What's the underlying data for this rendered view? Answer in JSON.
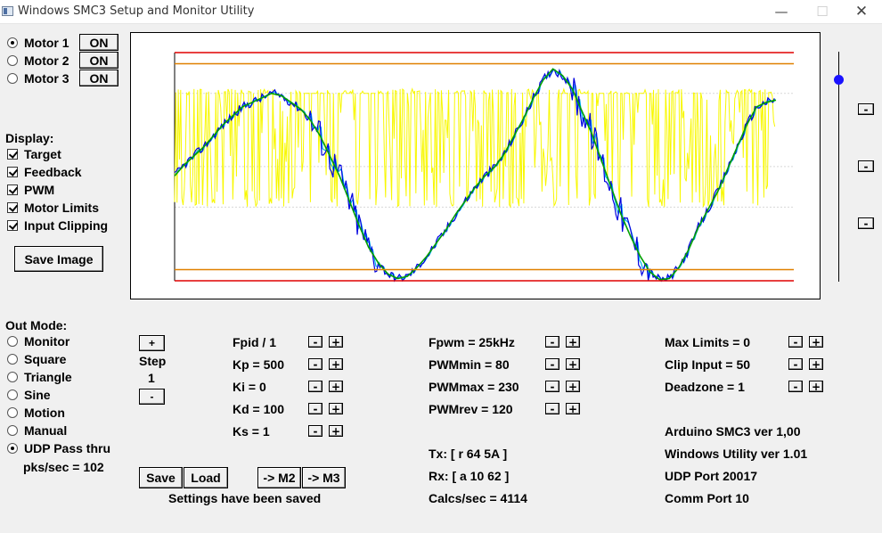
{
  "window": {
    "title": "Windows SMC3 Setup and Monitor Utility",
    "min_glyph": "—",
    "max_glyph": "☐",
    "close_glyph": "✕"
  },
  "motors": [
    {
      "label": "Motor 1",
      "selected": true,
      "button": "ON"
    },
    {
      "label": "Motor 2",
      "selected": false,
      "button": "ON"
    },
    {
      "label": "Motor 3",
      "selected": false,
      "button": "ON"
    }
  ],
  "display": {
    "heading": "Display:",
    "options": [
      {
        "label": "Target",
        "checked": true
      },
      {
        "label": "Feedback",
        "checked": true
      },
      {
        "label": "PWM",
        "checked": true
      },
      {
        "label": "Motor Limits",
        "checked": true
      },
      {
        "label": "Input Clipping",
        "checked": true
      }
    ],
    "save_image": "Save Image"
  },
  "out_mode": {
    "heading": "Out Mode:",
    "options": [
      {
        "label": "Monitor",
        "selected": false
      },
      {
        "label": "Square",
        "selected": false
      },
      {
        "label": "Triangle",
        "selected": false
      },
      {
        "label": "Sine",
        "selected": false
      },
      {
        "label": "Motion",
        "selected": false
      },
      {
        "label": "Manual",
        "selected": false
      },
      {
        "label": "UDP Pass thru",
        "selected": true
      }
    ],
    "pks_sec": "pks/sec = 102"
  },
  "step": {
    "plus": "+",
    "label": "Step",
    "value": "1",
    "minus": "-"
  },
  "pid_params": [
    "Fpid / 1",
    "Kp = 500",
    "Ki = 0",
    "Kd = 100",
    "Ks = 1"
  ],
  "pwm_params": [
    "Fpwm = 25kHz",
    "PWMmin = 80",
    "PWMmax = 230",
    "PWMrev = 120"
  ],
  "limit_params": [
    "Max Limits = 0",
    "Clip Input = 50",
    "Deadzone = 1"
  ],
  "adjust": {
    "minus": "-",
    "plus": "+"
  },
  "comms": {
    "tx": "Tx: [ r 64 5A ]",
    "rx": "Rx: [ a 10 62 ]",
    "calcs": "Calcs/sec = 4114"
  },
  "info": [
    "Arduino SMC3 ver 1,00",
    "Windows Utility ver 1.01",
    "UDP Port 20017",
    "Comm Port 10"
  ],
  "bottom_buttons": {
    "save": "Save",
    "load": "Load",
    "to_m2": "-> M2",
    "to_m3": "-> M3",
    "status": "Settings have been saved"
  },
  "slider": {
    "value": 0.88,
    "buttons": [
      "-",
      "-",
      "-"
    ]
  },
  "chart_data": {
    "type": "line",
    "title": "",
    "xlabel": "",
    "ylabel": "",
    "ylim": [
      0,
      1023
    ],
    "limits": {
      "motor_limit_lines": [
        1023,
        0
      ],
      "clip_lines": [
        973,
        50
      ],
      "color_motor_limit": "#e00000",
      "color_clip": "#e08000"
    },
    "dashed_guides": [
      840,
      512,
      330
    ],
    "colors": {
      "target": "#00a000",
      "feedback": "#0000e0",
      "pwm": "#f8f800",
      "feedback_alt": "#00b0f0"
    },
    "series": [
      {
        "key": "target",
        "values": [
          470,
          520,
          560,
          600,
          650,
          700,
          740,
          780,
          800,
          820,
          840,
          830,
          800,
          770,
          720,
          650,
          560,
          470,
          360,
          250,
          150,
          80,
          30,
          10,
          20,
          60,
          110,
          170,
          230,
          300,
          360,
          420,
          470,
          510,
          570,
          650,
          730,
          820,
          900,
          950,
          920,
          860,
          760,
          660,
          540,
          420,
          300,
          200,
          110,
          40,
          5,
          10,
          60,
          140,
          240,
          320,
          400,
          500,
          600,
          700,
          780,
          800,
          810
        ]
      }
    ]
  }
}
